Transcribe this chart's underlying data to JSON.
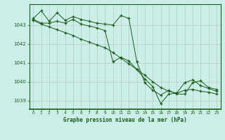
{
  "title": "Graphe pression niveau de la mer (hPa)",
  "bg_color": "#cceee8",
  "grid_color": "#b8c8c0",
  "line_color": "#1a5c1a",
  "marker_color": "#1a5c1a",
  "xlabel_color": "#1a5c1a",
  "ylim": [
    1038.55,
    1044.1
  ],
  "xlim": [
    -0.5,
    23.5
  ],
  "yticks": [
    1039,
    1040,
    1041,
    1042,
    1043
  ],
  "xticks": [
    0,
    1,
    2,
    3,
    4,
    5,
    6,
    7,
    8,
    9,
    10,
    11,
    12,
    13,
    14,
    15,
    16,
    17,
    18,
    19,
    20,
    21,
    22,
    23
  ],
  "series": [
    {
      "x": [
        0,
        1,
        2,
        3,
        4,
        5,
        6,
        7,
        8,
        9,
        10,
        11,
        12,
        13,
        14,
        15,
        16,
        17,
        18,
        19,
        20,
        21,
        22,
        23
      ],
      "y": [
        1043.35,
        1043.75,
        1043.2,
        1043.65,
        1043.25,
        1043.45,
        1043.3,
        1043.2,
        1043.1,
        1043.05,
        1043.0,
        1043.5,
        1043.35,
        1041.05,
        1039.95,
        1039.55,
        1039.3,
        1039.55,
        1039.35,
        1039.35,
        1039.95,
        1040.05,
        1039.7,
        1039.6
      ]
    },
    {
      "x": [
        0,
        1,
        2,
        3,
        4,
        5,
        6,
        7,
        8,
        9,
        10,
        11,
        12,
        13,
        14,
        15,
        16,
        17,
        18,
        19,
        20,
        21,
        22,
        23
      ],
      "y": [
        1043.3,
        1043.1,
        1043.1,
        1043.2,
        1043.1,
        1043.3,
        1043.05,
        1042.95,
        1042.85,
        1042.7,
        1041.05,
        1041.3,
        1041.1,
        1040.65,
        1040.15,
        1039.75,
        1038.85,
        1039.35,
        1039.4,
        1039.95,
        1040.1,
        1039.8,
        1039.65,
        1039.5
      ]
    },
    {
      "x": [
        0,
        1,
        2,
        3,
        4,
        5,
        6,
        7,
        8,
        9,
        10,
        11,
        12,
        13,
        14,
        15,
        16,
        17,
        18,
        19,
        20,
        21,
        22,
        23
      ],
      "y": [
        1043.25,
        1043.05,
        1042.9,
        1042.75,
        1042.6,
        1042.45,
        1042.25,
        1042.1,
        1041.95,
        1041.8,
        1041.55,
        1041.25,
        1040.95,
        1040.65,
        1040.35,
        1040.0,
        1039.7,
        1039.5,
        1039.4,
        1039.55,
        1039.6,
        1039.5,
        1039.45,
        1039.35
      ]
    }
  ]
}
